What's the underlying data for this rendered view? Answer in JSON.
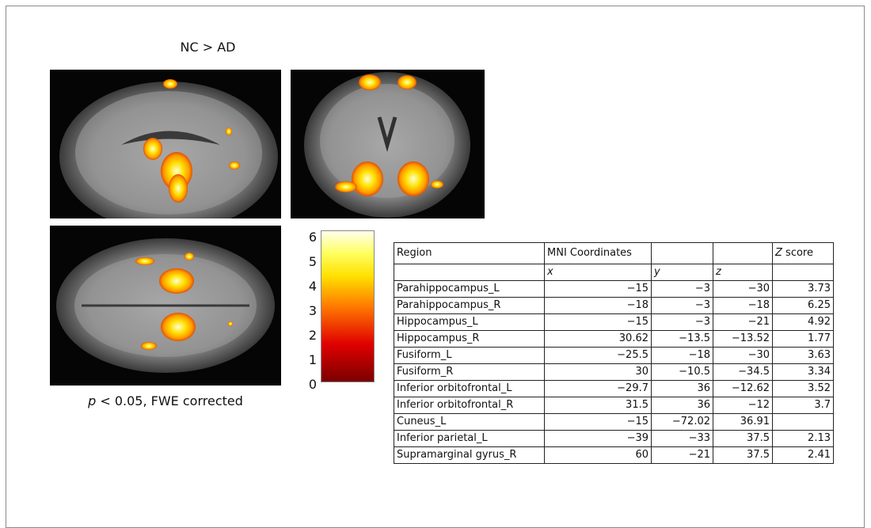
{
  "figure": {
    "title": "NC > AD",
    "caption": {
      "italic": "p",
      "text": "< 0.05, FWE corrected"
    },
    "colorbar": {
      "ticks": [
        0,
        1,
        2,
        3,
        4,
        5,
        6
      ]
    },
    "table": {
      "header": {
        "region": "Region",
        "coordinates": "MNI Coordinates",
        "score": {
          "italic": "Z",
          "text": "score"
        }
      },
      "axes": [
        "x",
        "y",
        "z"
      ],
      "rows": [
        [
          "Parahippocampus_L",
          "−15",
          "−3",
          "−30",
          "3.73"
        ],
        [
          "Parahippocampus_R",
          "−18",
          "−3",
          "−18",
          "6.25"
        ],
        [
          "Hippocampus_L",
          "−15",
          "−3",
          "−21",
          "4.92"
        ],
        [
          "Hippocampus_R",
          "30.62",
          "−13.5",
          "−13.52",
          "1.77"
        ],
        [
          "Fusiform_L",
          "−25.5",
          "−18",
          "−30",
          "3.63"
        ],
        [
          "Fusiform_R",
          "30",
          "−10.5",
          "−34.5",
          "3.34"
        ],
        [
          "Inferior orbitofrontal_L",
          "−29.7",
          "36",
          "−12.62",
          "3.52"
        ],
        [
          "Inferior orbitofrontal_R",
          "31.5",
          "36",
          "−12",
          "3.7"
        ],
        [
          "Cuneus_L",
          "−15",
          "−72.02",
          "36.91",
          null
        ],
        [
          "Inferior parietal_L",
          "−39",
          "−33",
          "37.5",
          "2.13"
        ],
        [
          "Supramarginal gyrus_R",
          "60",
          "−21",
          "37.5",
          "2.41"
        ]
      ]
    }
  }
}
